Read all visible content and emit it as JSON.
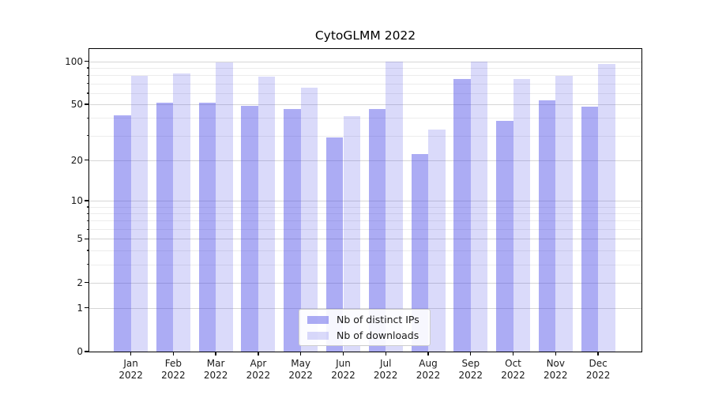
{
  "chart_data": {
    "type": "bar",
    "title": "CytoGLMM 2022",
    "months": [
      "Jan",
      "Feb",
      "Mar",
      "Apr",
      "May",
      "Jun",
      "Jul",
      "Aug",
      "Sep",
      "Oct",
      "Nov",
      "Dec"
    ],
    "year_label": "2022",
    "series": [
      {
        "name": "Nb of distinct IPs",
        "color": "rgba(70,70,230,0.45)",
        "values": [
          42,
          51,
          51,
          49,
          46,
          29,
          46,
          22,
          75,
          38,
          53,
          48
        ]
      },
      {
        "name": "Nb of downloads",
        "color": "rgba(70,70,230,0.2)",
        "values": [
          79,
          82,
          98,
          78,
          65,
          41,
          100,
          33,
          100,
          75,
          79,
          96
        ]
      }
    ],
    "y_scale": "log10(x+1)",
    "y_major_ticks": [
      100,
      50,
      20,
      10,
      5,
      2,
      1,
      0
    ],
    "y_minor_gridlines": [
      3,
      4,
      6,
      7,
      8,
      9,
      30,
      40,
      60,
      70,
      80,
      90
    ],
    "y_top_value": 122,
    "ylim": [
      0,
      122
    ],
    "xlabel": "",
    "ylabel": "",
    "grid": "on",
    "legend_position": "lower center",
    "colors": {
      "major_grid": "#d6d6d6",
      "minor_grid": "#ececec",
      "axis": "#000000",
      "text": "#1a1a1a",
      "legend_border": "#cccccc"
    }
  }
}
